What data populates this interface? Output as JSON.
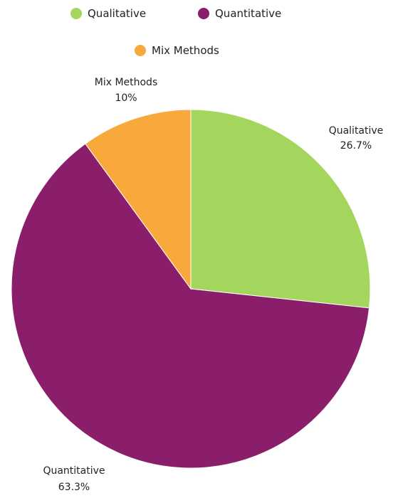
{
  "chart_data": {
    "type": "pie",
    "title": "",
    "slices": [
      {
        "label": "Qualitative",
        "value": 26.7,
        "value_label": "26.7%",
        "color": "#a4d65e"
      },
      {
        "label": "Quantitative",
        "value": 63.3,
        "value_label": "63.3%",
        "color": "#8b1e6b"
      },
      {
        "label": "Mix Methods",
        "value": 10,
        "value_label": "10%",
        "color": "#f9a83c"
      }
    ],
    "legend": {
      "placement": "top-center",
      "items": [
        "Qualitative",
        "Quantitative",
        "Mix Methods"
      ]
    },
    "start_angle": "12 o'clock",
    "direction": "clockwise"
  }
}
